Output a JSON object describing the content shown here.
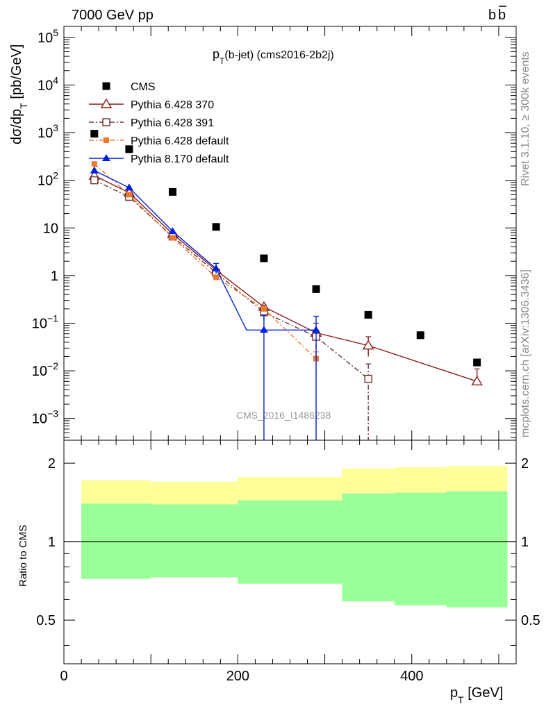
{
  "header": {
    "left": "7000 GeV pp",
    "right": "b",
    "right_bar": "b"
  },
  "side_labels": {
    "rivet": "Rivet 3.1.10, ≥ 300k events",
    "mcplots": "mcplots.cern.ch [arXiv:1306.3436]"
  },
  "chart_data": [
    {
      "type": "scatter",
      "title_main": "p",
      "title_sub": "T",
      "title_rest": "(b-jet) (cms2016-2b2j)",
      "watermark": "CMS_2016_I1486238",
      "ylabel_main": "dσ/dp",
      "ylabel_sub": "T",
      "ylabel_rest": " [pb/GeV]",
      "yscale": "log",
      "ylim": [
        0.00035,
        170000
      ],
      "xlim": [
        0,
        520
      ],
      "yticks": [
        {
          "v": 0.001,
          "label": "10",
          "exp": "−3"
        },
        {
          "v": 0.01,
          "label": "10",
          "exp": "−2"
        },
        {
          "v": 0.1,
          "label": "10",
          "exp": "−1"
        },
        {
          "v": 1,
          "label": "1",
          "exp": ""
        },
        {
          "v": 10,
          "label": "10",
          "exp": ""
        },
        {
          "v": 100,
          "label": "10",
          "exp": "2"
        },
        {
          "v": 1000,
          "label": "10",
          "exp": "3"
        },
        {
          "v": 10000,
          "label": "10",
          "exp": "4"
        },
        {
          "v": 100000,
          "label": "10",
          "exp": "5"
        }
      ],
      "legend_position": "top-left",
      "series": [
        {
          "name": "CMS",
          "color": "#000000",
          "marker": "square",
          "line": "none",
          "x": [
            35,
            75,
            125,
            175,
            230,
            290,
            350,
            410,
            475
          ],
          "y": [
            950,
            450,
            57,
            10.5,
            2.3,
            0.52,
            0.15,
            0.056,
            0.015
          ]
        },
        {
          "name": "Pythia 6.428 370",
          "color": "#8b1a1a",
          "marker": "open-triangle",
          "line": "solid",
          "x": [
            35,
            75,
            125,
            175,
            230,
            290,
            350,
            475
          ],
          "y": [
            125,
            55,
            7.5,
            1.3,
            0.22,
            0.063,
            0.034,
            0.006
          ],
          "yerr_low": [
            null,
            null,
            null,
            null,
            null,
            null,
            0.02,
            0.006
          ],
          "yerr_high": [
            null,
            null,
            null,
            null,
            null,
            null,
            0.052,
            0.011
          ]
        },
        {
          "name": "Pythia 6.428 391",
          "color": "#6b3030",
          "marker": "open-square",
          "line": "dashdot",
          "x": [
            35,
            75,
            125,
            175,
            230,
            290,
            350
          ],
          "y": [
            100,
            45,
            6.6,
            1.15,
            0.17,
            0.052,
            0.0068
          ],
          "yerr_low": [
            null,
            null,
            null,
            null,
            0.11,
            0.02,
            0.0003
          ],
          "yerr_high": [
            null,
            null,
            null,
            null,
            0.24,
            0.1,
            0.014
          ]
        },
        {
          "name": "Pythia 6.428 default",
          "color": "#f07830",
          "marker": "filled-square",
          "line": "dashdot",
          "x": [
            35,
            75,
            125,
            175,
            230,
            290
          ],
          "y": [
            220,
            50,
            6.2,
            0.92,
            0.2,
            0.018
          ],
          "yerr_low": [
            null,
            null,
            null,
            null,
            null,
            0.008
          ],
          "yerr_high": [
            null,
            null,
            null,
            null,
            null,
            0.025
          ]
        },
        {
          "name": "Pythia 8.170 default",
          "color": "#0020e0",
          "marker": "filled-triangle",
          "line": "solid",
          "x": [
            35,
            75,
            125,
            175,
            230,
            290
          ],
          "y": [
            160,
            70,
            8.5,
            1.4,
            0.072,
            0.072
          ],
          "yerr_low": [
            null,
            null,
            null,
            1.1,
            0.0003,
            0.0003
          ],
          "yerr_high": [
            null,
            null,
            null,
            1.8,
            0.15,
            0.14
          ],
          "ybins": [
            [
              null,
              null
            ],
            [
              null,
              null
            ],
            [
              null,
              null
            ],
            [
              null,
              null
            ],
            [
              210,
              260
            ],
            [
              260,
              290
            ]
          ]
        }
      ]
    },
    {
      "type": "area",
      "ylabel": "Ratio to CMS",
      "xlabel_main": "p",
      "xlabel_sub": "T",
      "xlabel_rest": " [GeV]",
      "yscale": "log",
      "ylim": [
        0.34,
        2.45
      ],
      "xlim": [
        0,
        520
      ],
      "yticks": [
        {
          "v": 0.5,
          "label": "0.5"
        },
        {
          "v": 1,
          "label": "1"
        },
        {
          "v": 2,
          "label": "2"
        }
      ],
      "xticks": [
        {
          "v": 0,
          "label": "0"
        },
        {
          "v": 200,
          "label": "200"
        },
        {
          "v": 400,
          "label": "400"
        }
      ],
      "bins": [
        20,
        100,
        200,
        320,
        380,
        440,
        510
      ],
      "band_outer_color": "#ffff99",
      "band_inner_color": "#99ff99",
      "outer_low": [
        0.72,
        0.73,
        0.69,
        0.59,
        0.57,
        0.56
      ],
      "outer_high": [
        1.72,
        1.7,
        1.77,
        1.91,
        1.93,
        1.95
      ],
      "inner_low": [
        0.72,
        0.73,
        0.69,
        0.59,
        0.57,
        0.56
      ],
      "inner_high": [
        1.4,
        1.39,
        1.44,
        1.53,
        1.54,
        1.56
      ],
      "inner_x": [
        20,
        100,
        200,
        320,
        380,
        440,
        510
      ]
    }
  ]
}
